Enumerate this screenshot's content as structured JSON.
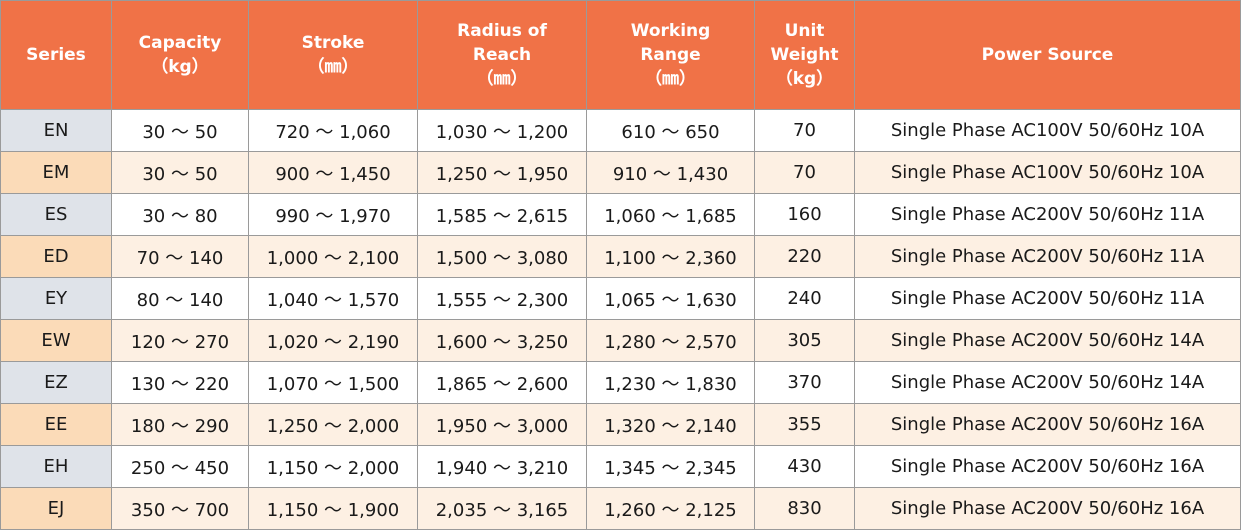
{
  "table": {
    "headers": [
      [
        "Series"
      ],
      [
        "Capacity",
        "（kg）"
      ],
      [
        "Stroke",
        "（㎜）"
      ],
      [
        "Radius of",
        "Reach",
        "（㎜）"
      ],
      [
        "Working",
        "Range",
        "（㎜）"
      ],
      [
        "Unit",
        "Weight",
        "（kg）"
      ],
      [
        "Power Source"
      ]
    ],
    "rows": [
      [
        "EN",
        "30 ～ 50",
        "720 ～ 1,060",
        "1,030 ～ 1,200",
        "610 ～ 650",
        "70",
        "Single Phase AC100V 50/60Hz 10A"
      ],
      [
        "EM",
        "30 ～ 50",
        "900 ～ 1,450",
        "1,250 ～ 1,950",
        "910 ～ 1,430",
        "70",
        "Single Phase AC100V 50/60Hz 10A"
      ],
      [
        "ES",
        "30 ～ 80",
        "990 ～ 1,970",
        "1,585 ～ 2,615",
        "1,060 ～ 1,685",
        "160",
        "Single Phase AC200V 50/60Hz 11A"
      ],
      [
        "ED",
        "70 ～ 140",
        "1,000 ～ 2,100",
        "1,500 ～ 3,080",
        "1,100 ～ 2,360",
        "220",
        "Single Phase AC200V 50/60Hz 11A"
      ],
      [
        "EY",
        "80 ～ 140",
        "1,040 ～ 1,570",
        "1,555 ～ 2,300",
        "1,065 ～ 1,630",
        "240",
        "Single Phase AC200V 50/60Hz 11A"
      ],
      [
        "EW",
        "120 ～ 270",
        "1,020 ～ 2,190",
        "1,600 ～ 3,250",
        "1,280 ～ 2,570",
        "305",
        "Single Phase AC200V 50/60Hz 14A"
      ],
      [
        "EZ",
        "130 ～ 220",
        "1,070 ～ 1,500",
        "1,865 ～ 2,600",
        "1,230 ～ 1,830",
        "370",
        "Single Phase AC200V 50/60Hz 14A"
      ],
      [
        "EE",
        "180 ～ 290",
        "1,250 ～ 2,000",
        "1,950 ～ 3,000",
        "1,320 ～ 2,140",
        "355",
        "Single Phase AC200V 50/60Hz 16A"
      ],
      [
        "EH",
        "250 ～ 450",
        "1,150 ～ 2,000",
        "1,940 ～ 3,210",
        "1,345 ～ 2,345",
        "430",
        "Single Phase AC200V 50/60Hz 16A"
      ],
      [
        "EJ",
        "350 ～ 700",
        "1,150 ～ 1,900",
        "2,035 ～ 3,165",
        "1,260 ～ 2,125",
        "830",
        "Single Phase AC200V 50/60Hz 16A"
      ]
    ]
  },
  "colors": {
    "header_bg": "#f07247",
    "header_text": "#ffffff",
    "series_odd_bg": "#dfe3e9",
    "series_even_bg": "#fbdbb8",
    "row_even_bg": "#fdf0e3",
    "row_odd_bg": "#ffffff",
    "border": "#9a9a9a"
  }
}
